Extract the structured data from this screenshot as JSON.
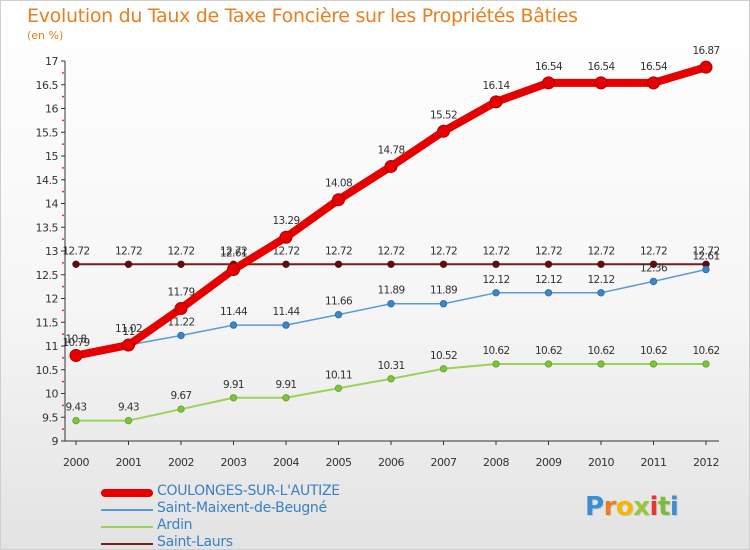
{
  "title": "Evolution du Taux de Taxe Foncière sur les Propriétés Bâties",
  "unit_label": "(en %)",
  "logo": {
    "letters": [
      "P",
      "r",
      "o",
      "x",
      "i",
      "t",
      "i"
    ],
    "colors": [
      "#3a8fd4",
      "#e87f1e",
      "#f2b705",
      "#9ac53d",
      "#e23b2e",
      "#7dbb3f",
      "#3a8fd4"
    ]
  },
  "chart_data": {
    "type": "line",
    "title": "Evolution du Taux de Taxe Foncière sur les Propriétés Bâties",
    "ylabel": "(en %)",
    "xlabel": "",
    "ylim": [
      9,
      17
    ],
    "ytick_step": 0.5,
    "yticks": [
      "9",
      "9.5",
      "10",
      "10.5",
      "11",
      "11.5",
      "12",
      "12.5",
      "13",
      "13.5",
      "14",
      "14.5",
      "15",
      "15.5",
      "16",
      "16.5",
      "17"
    ],
    "x": [
      "2000",
      "2001",
      "2002",
      "2003",
      "2004",
      "2005",
      "2006",
      "2007",
      "2008",
      "2009",
      "2010",
      "2011",
      "2012"
    ],
    "grid": false,
    "legend_position": "bottom-left",
    "series": [
      {
        "name": "Saint-Laurs",
        "color": "#7a1d1d",
        "values": [
          12.72,
          12.72,
          12.72,
          12.72,
          12.72,
          12.72,
          12.72,
          12.72,
          12.72,
          12.72,
          12.72,
          12.72,
          12.72
        ],
        "labels": [
          "12.72",
          "12.72",
          "12.72",
          "12.72",
          "12.72",
          "12.72",
          "12.72",
          "12.72",
          "12.72",
          "12.72",
          "12.72",
          "12.72",
          "12.72"
        ]
      },
      {
        "name": "Ardin",
        "color": "#9ad35a",
        "values": [
          9.43,
          9.43,
          9.67,
          9.91,
          9.91,
          10.11,
          10.31,
          10.52,
          10.62,
          10.62,
          10.62,
          10.62,
          10.62
        ],
        "labels": [
          "9.43",
          "9.43",
          "9.67",
          "9.91",
          "9.91",
          "10.11",
          "10.31",
          "10.52",
          "10.62",
          "10.62",
          "10.62",
          "10.62",
          "10.62"
        ]
      },
      {
        "name": "Saint-Maixent-de-Beugné",
        "color": "#5b9bd5",
        "values": [
          10.79,
          11.02,
          11.22,
          11.44,
          11.44,
          11.66,
          11.89,
          11.89,
          12.12,
          12.12,
          12.12,
          12.36,
          12.61
        ],
        "labels": [
          "10.79",
          "11",
          "11.22",
          "11.44",
          "11.44",
          "11.66",
          "11.89",
          "11.89",
          "12.12",
          "12.12",
          "12.12",
          "12.36",
          "12.61"
        ]
      },
      {
        "name": "COULONGES-SUR-L'AUTIZE",
        "color": "#e60000",
        "values": [
          10.8,
          11.02,
          11.79,
          12.61,
          13.29,
          14.08,
          14.78,
          15.52,
          16.14,
          16.54,
          16.54,
          16.54,
          16.87
        ],
        "labels": [
          "10.8",
          "11.02",
          "11.79",
          "12.61",
          "13.29",
          "14.08",
          "14.78",
          "15.52",
          "16.14",
          "16.54",
          "16.54",
          "16.54",
          "16.87"
        ]
      }
    ],
    "legend_order": [
      "COULONGES-SUR-L'AUTIZE",
      "Saint-Maixent-de-Beugné",
      "Ardin",
      "Saint-Laurs"
    ]
  }
}
